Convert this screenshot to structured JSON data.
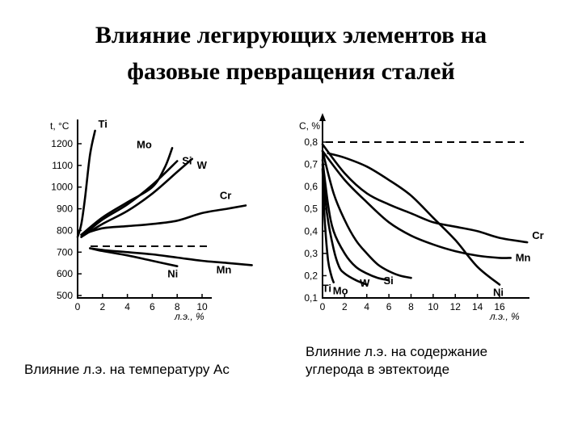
{
  "title_line1": "Влияние легирующих элементов на",
  "title_line2": "фазовые превращения сталей",
  "chart_data": [
    {
      "type": "line",
      "caption": "Влияние л.э. на температуру Ас",
      "ylabel": "t, °C",
      "xlabel": "л.э., %",
      "y_ticks": [
        "500",
        "600",
        "700",
        "800",
        "900",
        "1000",
        "1100",
        "1200"
      ],
      "x_ticks": [
        "0",
        "2",
        "4",
        "6",
        "8",
        "10"
      ],
      "ylim": [
        500,
        1250
      ],
      "xlim": [
        0,
        12
      ],
      "reference_dashed_y": 727,
      "series": [
        {
          "name": "Ti",
          "x": [
            0,
            0.3,
            0.6,
            1.0,
            1.4
          ],
          "y": [
            770,
            830,
            950,
            1150,
            1260
          ]
        },
        {
          "name": "Mo",
          "x": [
            0.3,
            2,
            4,
            6,
            7,
            7.6
          ],
          "y": [
            780,
            860,
            930,
            1000,
            1090,
            1180
          ]
        },
        {
          "name": "Si",
          "x": [
            0.3,
            2,
            4,
            6,
            8
          ],
          "y": [
            770,
            850,
            920,
            1010,
            1120
          ]
        },
        {
          "name": "W",
          "x": [
            0.3,
            2,
            4,
            6,
            8,
            9.2
          ],
          "y": [
            770,
            830,
            890,
            970,
            1070,
            1130
          ]
        },
        {
          "name": "Cr",
          "x": [
            0.3,
            2,
            4,
            6,
            8,
            10,
            12,
            13.5
          ],
          "y": [
            780,
            810,
            820,
            830,
            845,
            880,
            900,
            915
          ]
        },
        {
          "name": "Mn",
          "x": [
            1,
            2,
            4,
            6,
            8,
            10,
            12,
            14
          ],
          "y": [
            718,
            710,
            700,
            690,
            675,
            660,
            650,
            640
          ]
        },
        {
          "name": "Ni",
          "x": [
            1,
            2,
            4,
            6,
            8
          ],
          "y": [
            718,
            705,
            685,
            660,
            635
          ]
        }
      ]
    },
    {
      "type": "line",
      "caption": "Влияние л.э. на содержание углерода в эвтектоиде",
      "ylabel": "C, %",
      "xlabel": "л.э., %",
      "y_ticks": [
        "0,1",
        "0,2",
        "0,3",
        "0,4",
        "0,5",
        "0,6",
        "0,7",
        "0,8"
      ],
      "x_ticks": [
        "0",
        "2",
        "4",
        "6",
        "8",
        "10",
        "12",
        "14",
        "16"
      ],
      "ylim": [
        0.1,
        0.85
      ],
      "xlim": [
        0,
        19
      ],
      "reference_dashed_y": 0.8,
      "series": [
        {
          "name": "Cr",
          "x": [
            0,
            2,
            4,
            6,
            8,
            10,
            12,
            14,
            16,
            18.5
          ],
          "y": [
            0.79,
            0.66,
            0.57,
            0.52,
            0.48,
            0.44,
            0.42,
            0.4,
            0.37,
            0.35
          ]
        },
        {
          "name": "Mn",
          "x": [
            0,
            2,
            4,
            6,
            8,
            10,
            12,
            14,
            16,
            17
          ],
          "y": [
            0.76,
            0.63,
            0.53,
            0.44,
            0.38,
            0.34,
            0.31,
            0.29,
            0.28,
            0.28
          ]
        },
        {
          "name": "Ni",
          "x": [
            0.5,
            2,
            4,
            6,
            8,
            10,
            12,
            14,
            16
          ],
          "y": [
            0.75,
            0.73,
            0.69,
            0.63,
            0.56,
            0.46,
            0.36,
            0.24,
            0.16
          ]
        },
        {
          "name": "Si",
          "x": [
            0,
            1,
            2,
            3,
            4,
            5,
            6,
            7,
            8
          ],
          "y": [
            0.76,
            0.57,
            0.45,
            0.36,
            0.3,
            0.25,
            0.22,
            0.2,
            0.19
          ]
        },
        {
          "name": "W",
          "x": [
            0,
            0.5,
            1,
            2,
            3,
            4,
            5,
            6
          ],
          "y": [
            0.72,
            0.52,
            0.4,
            0.3,
            0.24,
            0.21,
            0.19,
            0.18
          ]
        },
        {
          "name": "Mo",
          "x": [
            0,
            0.4,
            1,
            1.5,
            2,
            3,
            4
          ],
          "y": [
            0.7,
            0.48,
            0.32,
            0.24,
            0.21,
            0.18,
            0.16
          ]
        },
        {
          "name": "Ti",
          "x": [
            0,
            0.2,
            0.5,
            0.8,
            1.0
          ],
          "y": [
            0.68,
            0.45,
            0.27,
            0.2,
            0.17
          ]
        }
      ]
    }
  ]
}
